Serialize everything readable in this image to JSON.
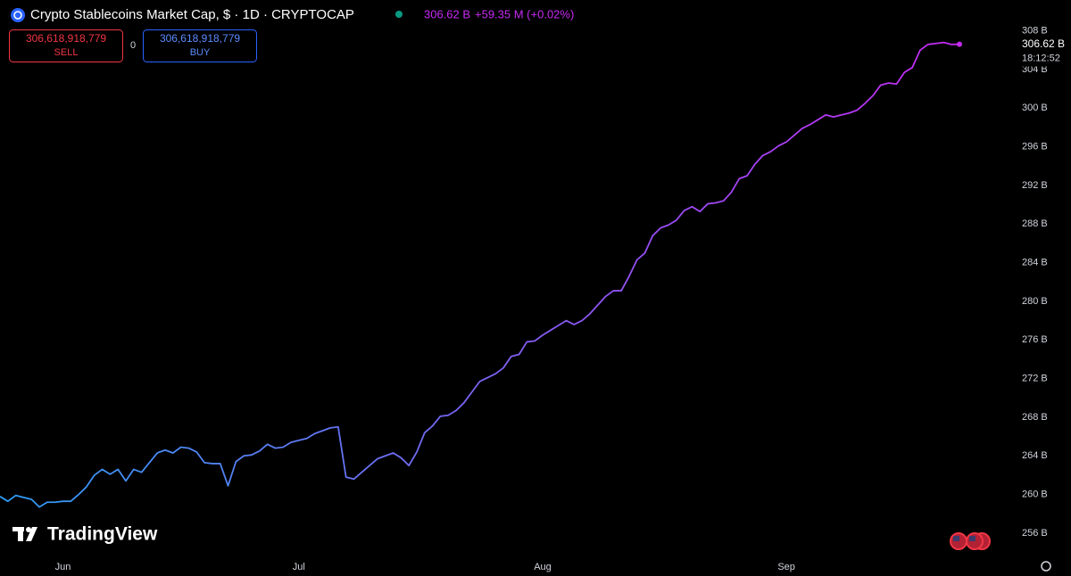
{
  "chart_data": {
    "type": "line",
    "title": "Crypto Stablecoins Market Cap, $ · 1D · CRYPTOCAP",
    "legend_price": "306.62 B",
    "legend_change": "+59.35 M (+0.02%)",
    "categories": [
      null,
      null,
      null,
      null,
      null,
      null,
      null,
      null,
      "Jun",
      null,
      null,
      null,
      null,
      null,
      null,
      null,
      null,
      null,
      null,
      null,
      null,
      null,
      null,
      null,
      null,
      null,
      null,
      null,
      null,
      null,
      null,
      null,
      null,
      null,
      null,
      null,
      null,
      null,
      "Jul",
      null,
      null,
      null,
      null,
      null,
      null,
      null,
      null,
      null,
      null,
      null,
      null,
      null,
      null,
      null,
      null,
      null,
      null,
      null,
      null,
      null,
      null,
      null,
      null,
      null,
      null,
      null,
      null,
      null,
      null,
      "Aug",
      null,
      null,
      null,
      null,
      null,
      null,
      null,
      null,
      null,
      null,
      null,
      null,
      null,
      null,
      null,
      null,
      null,
      null,
      null,
      null,
      null,
      null,
      null,
      null,
      null,
      null,
      null,
      null,
      null,
      null,
      "Sep",
      null,
      null,
      null,
      null,
      null,
      null,
      null,
      null,
      null,
      null,
      null,
      null,
      null,
      null,
      null,
      null,
      null,
      null,
      null,
      null,
      null,
      null
    ],
    "values": [
      259.8,
      259.3,
      259.9,
      259.7,
      259.5,
      258.7,
      259.2,
      259.2,
      259.3,
      259.3,
      260.0,
      260.8,
      262.0,
      262.6,
      262.1,
      262.6,
      261.4,
      262.6,
      262.3,
      263.3,
      264.3,
      264.6,
      264.3,
      264.9,
      264.8,
      264.4,
      263.3,
      263.2,
      263.2,
      260.9,
      263.4,
      264.0,
      264.1,
      264.5,
      265.2,
      264.8,
      264.9,
      265.4,
      265.6,
      265.8,
      266.3,
      266.6,
      266.9,
      267.0,
      261.8,
      261.6,
      262.3,
      263.0,
      263.7,
      264.0,
      264.3,
      263.8,
      263.0,
      264.4,
      266.4,
      267.1,
      268.1,
      268.2,
      268.7,
      269.5,
      270.6,
      271.7,
      272.1,
      272.5,
      273.1,
      274.3,
      274.5,
      275.8,
      275.9,
      276.5,
      277.0,
      277.5,
      278.0,
      277.6,
      278.0,
      278.7,
      279.6,
      280.5,
      281.1,
      281.1,
      282.6,
      284.3,
      285.0,
      286.8,
      287.6,
      287.9,
      288.4,
      289.4,
      289.8,
      289.3,
      290.1,
      290.2,
      290.4,
      291.3,
      292.7,
      293.0,
      294.2,
      295.1,
      295.5,
      296.1,
      296.5,
      297.2,
      297.9,
      298.3,
      298.8,
      299.3,
      299.1,
      299.3,
      299.5,
      299.8,
      300.5,
      301.3,
      302.4,
      302.6,
      302.5,
      303.7,
      304.2,
      306.0,
      306.6,
      306.7,
      306.8,
      306.6,
      306.62
    ],
    "colors": [
      "#2f9cf2",
      "#c62af2"
    ],
    "ylim": [
      253.5,
      311.2
    ],
    "yticks": [
      {
        "value": 256,
        "label": "256 B"
      },
      {
        "value": 260,
        "label": "260 B"
      },
      {
        "value": 264,
        "label": "264 B"
      },
      {
        "value": 268,
        "label": "268 B"
      },
      {
        "value": 272,
        "label": "272 B"
      },
      {
        "value": 276,
        "label": "276 B"
      },
      {
        "value": 280,
        "label": "280 B"
      },
      {
        "value": 284,
        "label": "284 B"
      },
      {
        "value": 288,
        "label": "288 B"
      },
      {
        "value": 292,
        "label": "292 B"
      },
      {
        "value": 296,
        "label": "296 B"
      },
      {
        "value": 300,
        "label": "300 B"
      },
      {
        "value": 304,
        "label": "304 B"
      },
      {
        "value": 308,
        "label": "308 B"
      }
    ],
    "last_price_label": "306.62 B",
    "last_time_label": "18:12:52",
    "grid": false
  },
  "ui": {
    "sell_price": "306,618,918,779",
    "sell_label": "SELL",
    "spread": "0",
    "buy_price": "306,618,918,779",
    "buy_label": "BUY",
    "watermark": "TradingView"
  }
}
